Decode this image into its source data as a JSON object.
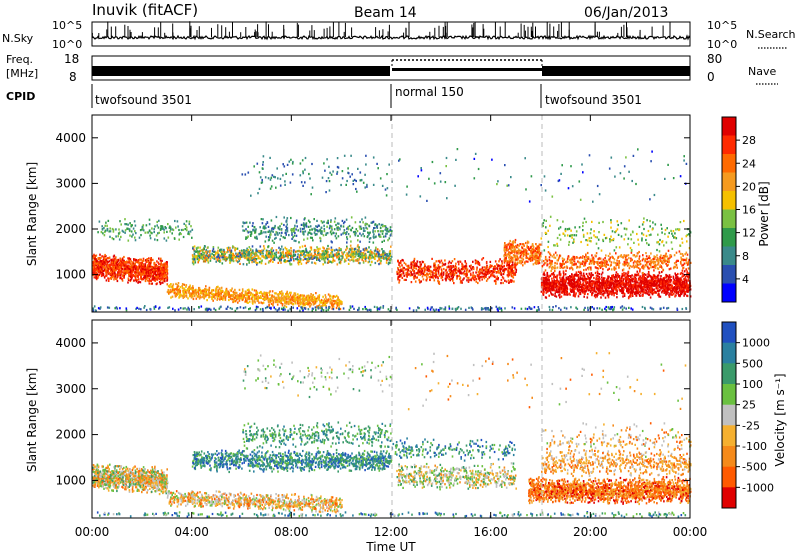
{
  "header": {
    "station": "Inuvik (fitACF)",
    "beam": "Beam 14",
    "date": "06/Jan/2013"
  },
  "top_panels": {
    "nsky_label": "N.Sky",
    "nsky_ticks": [
      "10^5",
      "10^0"
    ],
    "nsearch_label": "N.Search",
    "nsearch_ticks": [
      "10^5",
      "10^0"
    ],
    "freq_label_1": "Freq.",
    "freq_label_2": "[MHz]",
    "freq_ticks": [
      "18",
      "8"
    ],
    "nave_label": "Nave",
    "nave_ticks": [
      "80",
      "0"
    ],
    "cpid_label": "CPID",
    "cpid_segments": [
      {
        "start_hour": 0,
        "end_hour": 12,
        "label": "twofsound 3501"
      },
      {
        "start_hour": 12,
        "end_hour": 18,
        "label": "normal 150"
      },
      {
        "start_hour": 18,
        "end_hour": 24,
        "label": "twofsound 3501"
      }
    ]
  },
  "chart_data": [
    {
      "type": "heatmap",
      "name": "power",
      "ylabel": "Slant Range [km]",
      "yticks": [
        1000,
        2000,
        3000,
        4000
      ],
      "ylim": [
        180,
        4500
      ],
      "xlim": [
        0,
        24
      ],
      "colorbar_title": "Power [dB]",
      "colorbar_ticks": [
        "4",
        "8",
        "12",
        "16",
        "20",
        "24",
        "28"
      ],
      "colorbar_colors": [
        "#0000ff",
        "#2a4fb0",
        "#3a8a8a",
        "#2f9a4a",
        "#7ac142",
        "#f5c000",
        "#f59a1f",
        "#ff6a00",
        "#ff2a00",
        "#e00000"
      ]
    },
    {
      "type": "heatmap",
      "name": "velocity",
      "ylabel": "Slant Range [km]",
      "yticks": [
        1000,
        2000,
        3000,
        4000
      ],
      "ylim": [
        180,
        4500
      ],
      "xlim": [
        0,
        24
      ],
      "colorbar_title": "Velocity [m s⁻¹]",
      "colorbar_ticks": [
        "1000",
        "500",
        "100",
        "25",
        "-25",
        "-100",
        "-500",
        "-1000"
      ],
      "colorbar_colors": [
        "#2050c0",
        "#2a80a0",
        "#3a9a6a",
        "#6ac040",
        "#c0c0c0",
        "#f5b030",
        "#f58a1a",
        "#ff5a00",
        "#e00000"
      ]
    }
  ],
  "xaxis": {
    "ticks": [
      "00:00",
      "04:00",
      "08:00",
      "12:00",
      "16:00",
      "20:00",
      "00:00"
    ],
    "label": "Time UT"
  }
}
